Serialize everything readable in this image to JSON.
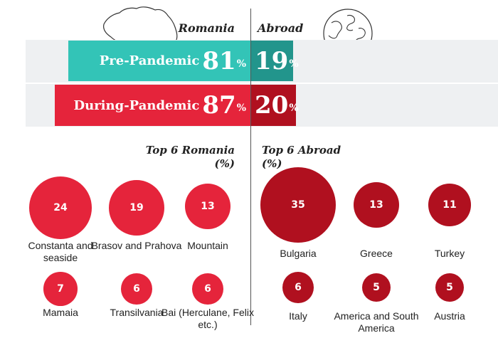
{
  "header": {
    "romania": "Romania",
    "abroad": "Abroad"
  },
  "colors": {
    "pre_romania": "#33c4b7",
    "pre_abroad": "#22958c",
    "during_romania": "#e5243b",
    "during_abroad": "#b0101f",
    "romania_bubble": "#e5243b",
    "abroad_bubble": "#b0101f",
    "band": "#eef0f2"
  },
  "chart_data": [
    {
      "type": "bar",
      "categories": [
        "Pre-Pandemic",
        "During-Pandemic"
      ],
      "series": [
        {
          "name": "Romania",
          "values": [
            81,
            87
          ]
        },
        {
          "name": "Abroad",
          "values": [
            19,
            20
          ]
        }
      ],
      "unit": "%"
    },
    {
      "type": "bubble",
      "title": "Top 6 Romania (%)",
      "categories": [
        "Constanta and seaside",
        "Brasov and Prahova",
        "Mountain",
        "Mamaia",
        "Transilvania",
        "Bai (Herculane, Felix etc.)"
      ],
      "values": [
        24,
        19,
        13,
        7,
        6,
        6
      ]
    },
    {
      "type": "bubble",
      "title": "Top 6 Abroad (%)",
      "categories": [
        "Bulgaria",
        "Greece",
        "Turkey",
        "Italy",
        "America and South America",
        "Austria"
      ],
      "values": [
        35,
        13,
        11,
        6,
        5,
        5
      ]
    }
  ],
  "bars": [
    {
      "label": "Pre-Pandemic",
      "romania": "81",
      "abroad": "19",
      "pct": "%"
    },
    {
      "label": "During-Pandemic",
      "romania": "87",
      "abroad": "20",
      "pct": "%"
    }
  ],
  "top_romania": {
    "title_line1": "Top 6 Romania",
    "title_line2": "(%)",
    "items": [
      {
        "value": "24",
        "label": "Constanta and seaside"
      },
      {
        "value": "19",
        "label": "Brasov and Prahova"
      },
      {
        "value": "13",
        "label": "Mountain"
      },
      {
        "value": "7",
        "label": "Mamaia"
      },
      {
        "value": "6",
        "label": "Transilvania"
      },
      {
        "value": "6",
        "label": "Bai (Herculane, Felix etc.)"
      }
    ]
  },
  "top_abroad": {
    "title_line1": "Top 6 Abroad",
    "title_line2": "(%)",
    "items": [
      {
        "value": "35",
        "label": "Bulgaria"
      },
      {
        "value": "13",
        "label": "Greece"
      },
      {
        "value": "11",
        "label": "Turkey"
      },
      {
        "value": "6",
        "label": "Italy"
      },
      {
        "value": "5",
        "label": "America and South America"
      },
      {
        "value": "5",
        "label": "Austria"
      }
    ]
  },
  "icons": {
    "romania_map": "romania-map-icon",
    "globe": "globe-icon"
  }
}
